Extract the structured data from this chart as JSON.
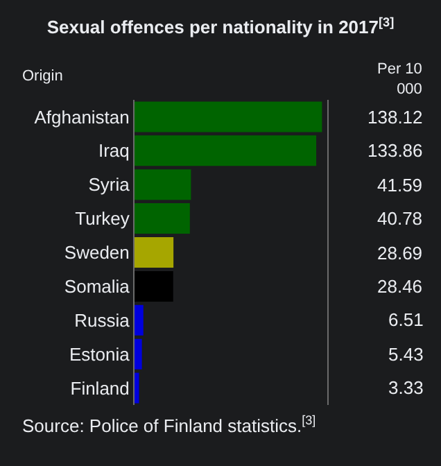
{
  "chart_data": {
    "type": "bar",
    "orientation": "horizontal",
    "title": "Sexual offences per nationality in 2017$^{[3]}$",
    "ylabel": "Origin",
    "xlabel": "Per 10 000",
    "categories": [
      "Afghanistan",
      "Iraq",
      "Syria",
      "Turkey",
      "Sweden",
      "Somalia",
      "Russia",
      "Estonia",
      "Finland"
    ],
    "values": [
      138.12,
      133.86,
      41.59,
      40.78,
      28.69,
      28.46,
      6.51,
      5.43,
      3.33
    ],
    "colors": [
      "#006400",
      "#006400",
      "#006400",
      "#006400",
      "#a6a600",
      "#000000",
      "#0000dd",
      "#0000dd",
      "#0000dd"
    ],
    "xlim": [
      0,
      142
    ],
    "data_labels": true,
    "tick_labels": "y",
    "grid": false,
    "legend": false,
    "annotations": [
      "Source: Police of Finland statistics.$^{[3]}$"
    ]
  }
}
